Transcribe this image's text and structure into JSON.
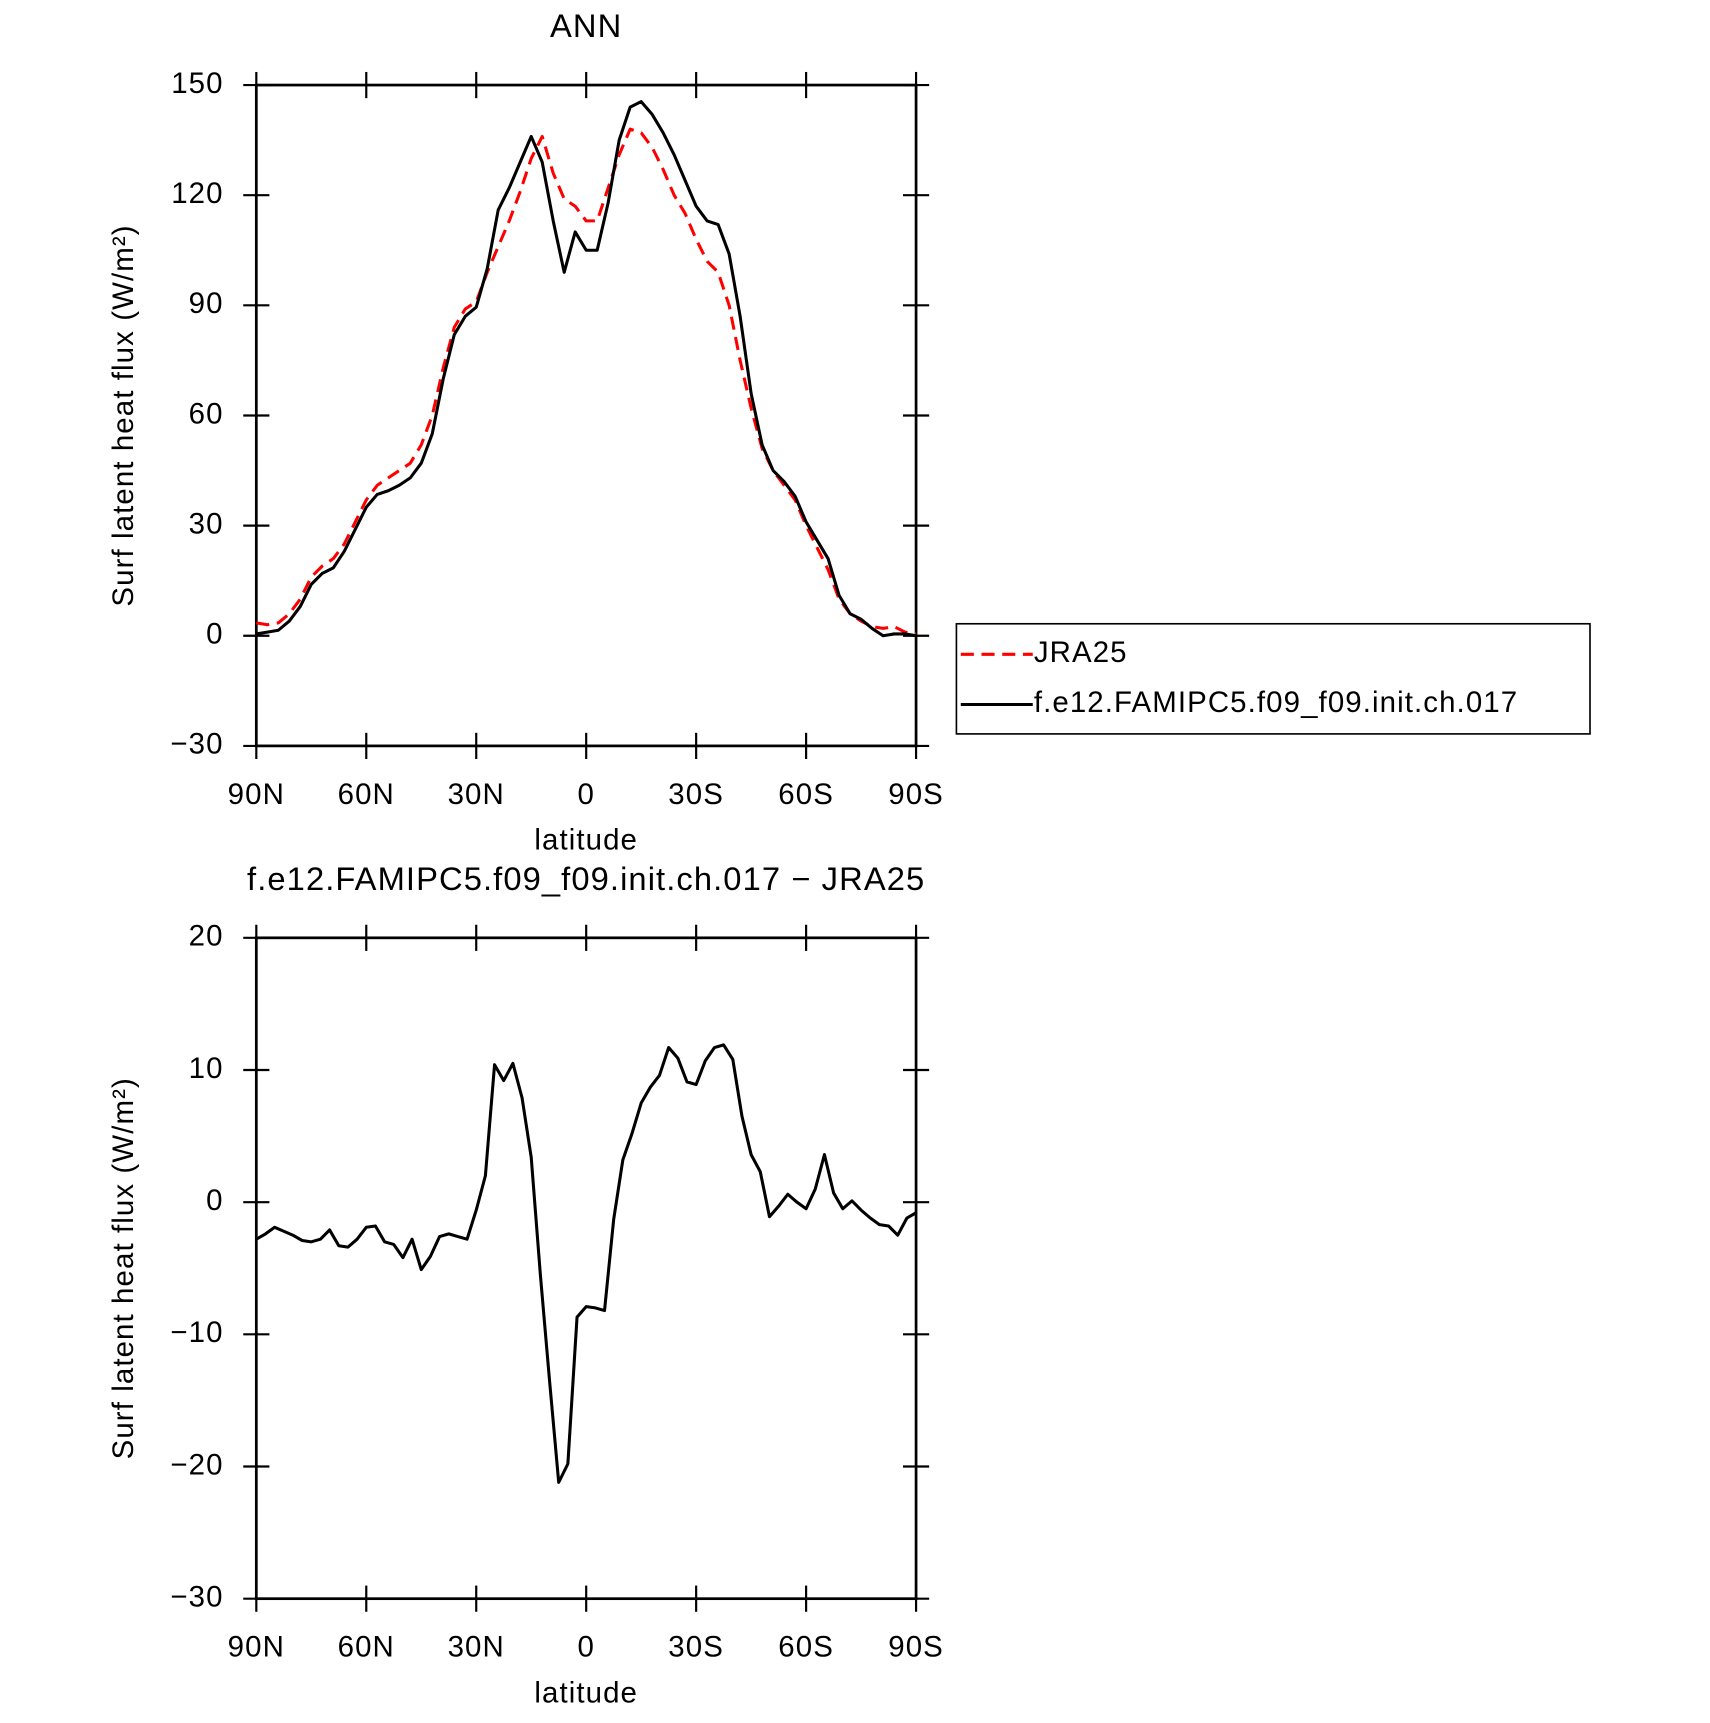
{
  "chart_data": [
    {
      "type": "line",
      "title": "ANN",
      "xlabel": "latitude",
      "ylabel": "Surf latent heat flux (W/m²)",
      "x": [
        90,
        87,
        84,
        81,
        78,
        75,
        72,
        69,
        66,
        63,
        60,
        57,
        54,
        51,
        48,
        45,
        42,
        39,
        36,
        33,
        30,
        27,
        24,
        21,
        18,
        15,
        12,
        9,
        6,
        3,
        0,
        -3,
        -6,
        -9,
        -12,
        -15,
        -18,
        -21,
        -24,
        -27,
        -30,
        -33,
        -36,
        -39,
        -42,
        -45,
        -48,
        -51,
        -54,
        -57,
        -60,
        -63,
        -66,
        -69,
        -72,
        -75,
        -78,
        -81,
        -84,
        -87,
        -90
      ],
      "series": [
        {
          "name": "JRA25",
          "color": "#ff0000",
          "dashed": true,
          "values": [
            3.5,
            3,
            3.5,
            6,
            10,
            16,
            19,
            21,
            25,
            31,
            37,
            41,
            43,
            45,
            47,
            52,
            60,
            73,
            84,
            89,
            91,
            99,
            106,
            113,
            121,
            130,
            136,
            126,
            119,
            117,
            113,
            113,
            122,
            131,
            138,
            137,
            133,
            127,
            120,
            115,
            108,
            102,
            99,
            90,
            75,
            62,
            51,
            45,
            41,
            37,
            30,
            24,
            18,
            10,
            6,
            4,
            2.5,
            2,
            2.5,
            1,
            0.5
          ]
        },
        {
          "name": "f.e12.FAMIPC5.f09_f09.init.ch.017",
          "color": "#000000",
          "dashed": false,
          "values": [
            0.5,
            1,
            1.5,
            4,
            8,
            14,
            17,
            18.5,
            23,
            29,
            35,
            38.5,
            39.5,
            41,
            43,
            47,
            55,
            70,
            82,
            87,
            89.5,
            100,
            116,
            122,
            129,
            136,
            129,
            113,
            99,
            110,
            105,
            105,
            118,
            135,
            144,
            145.5,
            142,
            137,
            131,
            124,
            117,
            113,
            112,
            104,
            87,
            66,
            52,
            45,
            42,
            38,
            31,
            26,
            21,
            11,
            6,
            4.5,
            2,
            0,
            0.5,
            0.5,
            0
          ]
        }
      ],
      "xlim": [
        90,
        -90
      ],
      "xticks": [
        {
          "value": 90,
          "label": "90N"
        },
        {
          "value": 60,
          "label": "60N"
        },
        {
          "value": 30,
          "label": "30N"
        },
        0,
        {
          "value": -30,
          "label": "30S"
        },
        {
          "value": -60,
          "label": "60S"
        },
        {
          "value": -90,
          "label": "90S"
        }
      ],
      "ylim": [
        -30,
        150
      ],
      "yticks": [
        {
          "value": -30,
          "label": "−30"
        },
        0,
        30,
        60,
        90,
        120,
        150
      ],
      "legend": "right"
    },
    {
      "type": "line",
      "title": "f.e12.FAMIPC5.f09_f09.init.ch.017 − JRA25",
      "xlabel": "latitude",
      "ylabel": "Surf latent heat flux (W/m²)",
      "x": [
        90,
        87.5,
        85,
        82.5,
        80,
        77.5,
        75,
        72.5,
        70,
        67.5,
        65,
        62.5,
        60,
        57.5,
        55,
        52.5,
        50,
        47.5,
        45,
        42.5,
        40,
        37.5,
        35,
        32.5,
        30,
        27.5,
        25,
        22.5,
        20,
        17.5,
        15,
        12.5,
        10,
        7.5,
        5,
        2.5,
        0,
        -2.5,
        -5,
        -7.5,
        -10,
        -12.5,
        -15,
        -17.5,
        -20,
        -22.5,
        -25,
        -27.5,
        -30,
        -32.5,
        -35,
        -37.5,
        -40,
        -42.5,
        -45,
        -47.5,
        -50,
        -52.5,
        -55,
        -57.5,
        -60,
        -62.5,
        -65,
        -67.5,
        -70,
        -72.5,
        -75,
        -77.5,
        -80,
        -82.5,
        -85,
        -87.5,
        -90
      ],
      "color": "#000000",
      "values": [
        -2.8,
        -2.4,
        -1.9,
        -2.2,
        -2.5,
        -2.9,
        -3,
        -2.8,
        -2.1,
        -3.3,
        -3.4,
        -2.8,
        -1.9,
        -1.8,
        -3,
        -3.2,
        -4.2,
        -2.8,
        -5.1,
        -4.1,
        -2.6,
        -2.4,
        -2.6,
        -2.8,
        -0.6,
        2,
        10.4,
        9.2,
        10.5,
        7.9,
        3.4,
        -5.5,
        -13.5,
        -21.2,
        -19.8,
        -8.7,
        -7.9,
        -8,
        -8.2,
        -1.3,
        3.2,
        5.2,
        7.5,
        8.7,
        9.6,
        11.7,
        10.9,
        9.1,
        8.9,
        10.7,
        11.7,
        11.9,
        10.8,
        6.5,
        3.6,
        2.3,
        -1.1,
        -0.3,
        0.6,
        0,
        -0.5,
        1,
        3.6,
        0.7,
        -0.5,
        0.1,
        -0.6,
        -1.2,
        -1.7,
        -1.8,
        -2.5,
        -1.2,
        -0.8
      ],
      "xlim": [
        90,
        -90
      ],
      "xticks": [
        {
          "value": 90,
          "label": "90N"
        },
        {
          "value": 60,
          "label": "60N"
        },
        {
          "value": 30,
          "label": "30N"
        },
        0,
        {
          "value": -30,
          "label": "30S"
        },
        {
          "value": -60,
          "label": "60S"
        },
        {
          "value": -90,
          "label": "90S"
        }
      ],
      "ylim": [
        -30,
        20
      ],
      "yticks": [
        {
          "value": -30,
          "label": "−30"
        },
        {
          "value": -20,
          "label": "−20"
        },
        {
          "value": -10,
          "label": "−10"
        },
        0,
        10,
        20
      ]
    }
  ]
}
